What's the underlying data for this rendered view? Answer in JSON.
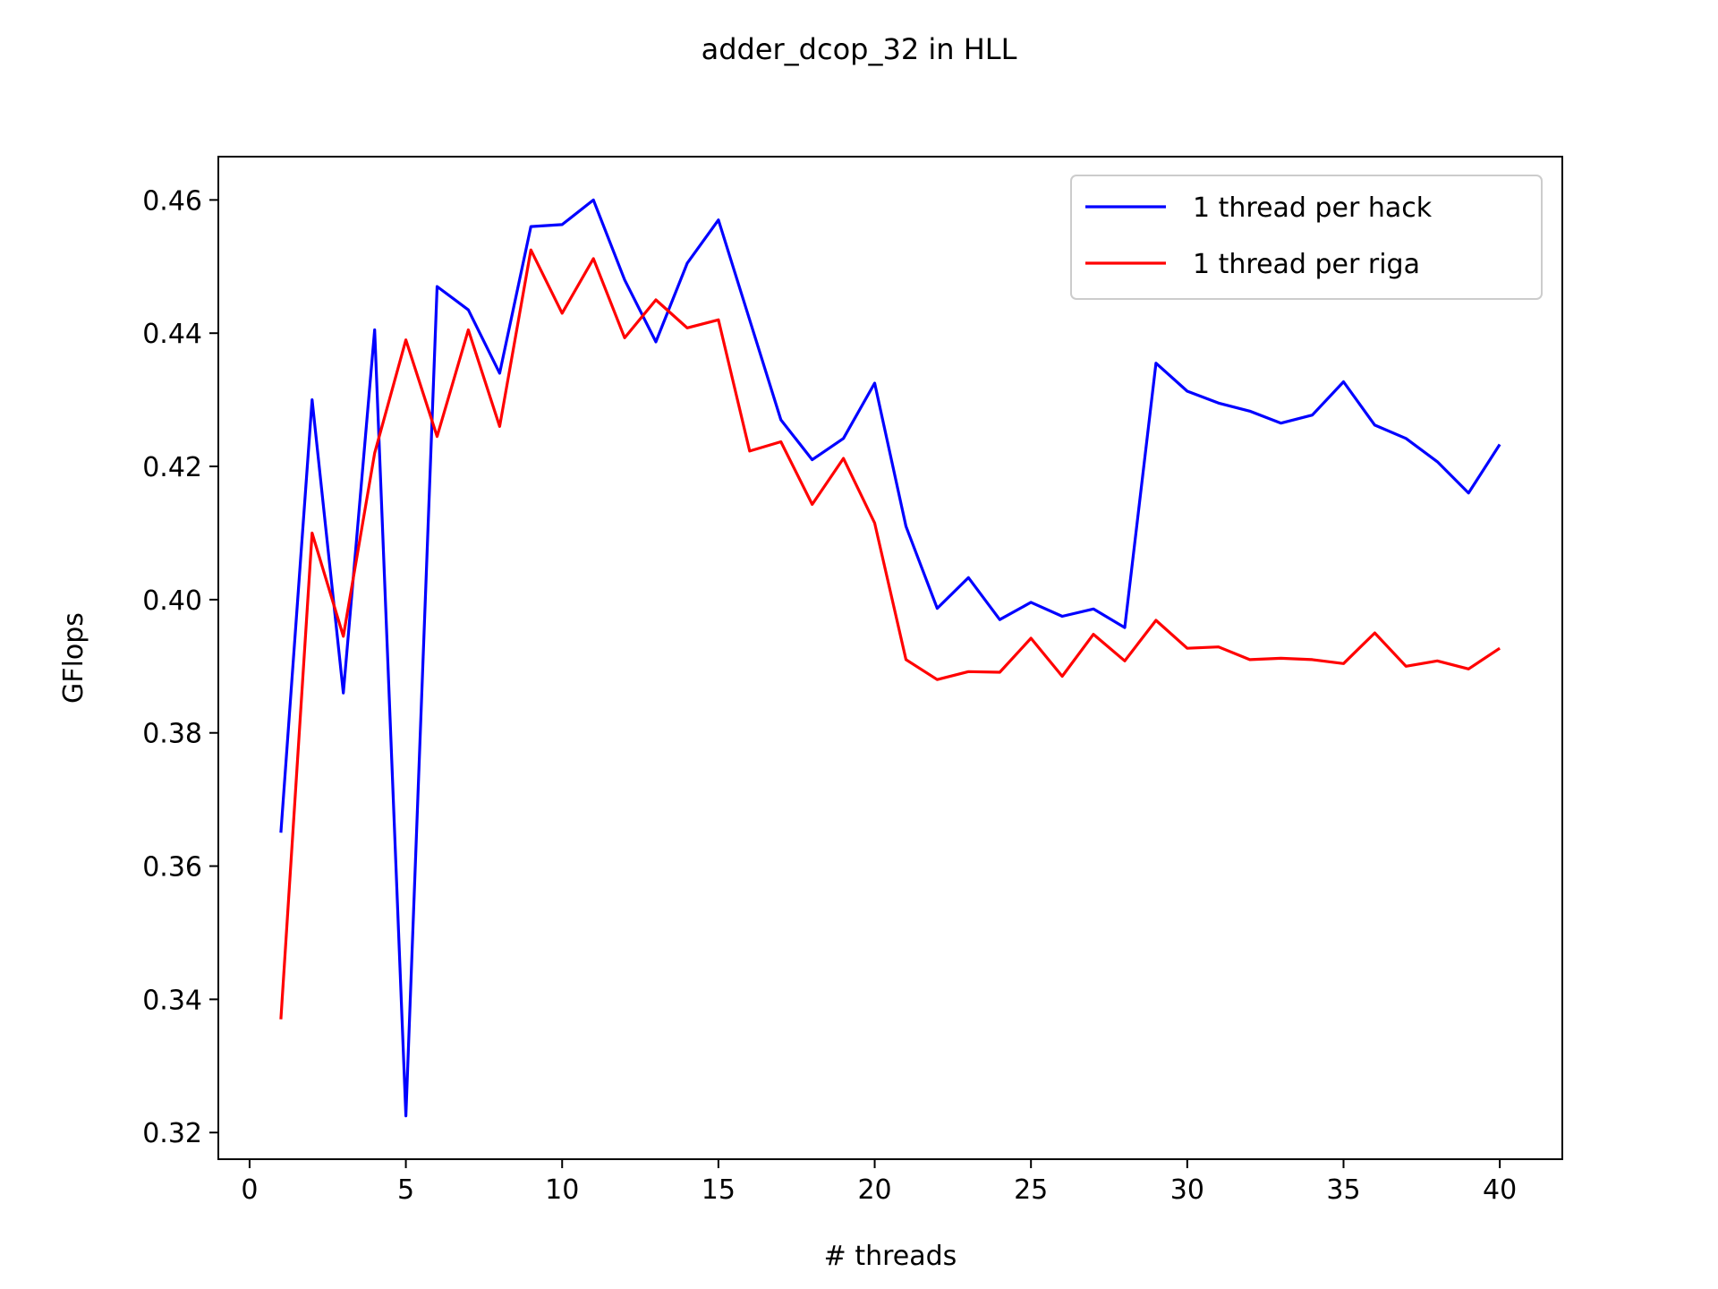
{
  "chart_data": {
    "type": "line",
    "title": "adder_dcop_32 in HLL",
    "xlabel": "# threads",
    "ylabel": "GFlops",
    "xlim": [
      -1,
      42
    ],
    "ylim": [
      0.316,
      0.4665
    ],
    "xticks": [
      0,
      5,
      10,
      15,
      20,
      25,
      30,
      35,
      40
    ],
    "yticks": [
      0.32,
      0.34,
      0.36,
      0.38,
      0.4,
      0.42,
      0.44,
      0.46
    ],
    "xtick_labels": [
      "0",
      "5",
      "10",
      "15",
      "20",
      "25",
      "30",
      "35",
      "40"
    ],
    "ytick_labels": [
      "0.32",
      "0.34",
      "0.36",
      "0.38",
      "0.40",
      "0.42",
      "0.44",
      "0.46"
    ],
    "grid": false,
    "legend_position": "top-right",
    "x": [
      1,
      2,
      3,
      4,
      5,
      6,
      7,
      8,
      9,
      10,
      11,
      12,
      13,
      14,
      15,
      16,
      17,
      18,
      19,
      20,
      21,
      22,
      23,
      24,
      25,
      26,
      27,
      28,
      29,
      30,
      31,
      32,
      33,
      34,
      35,
      36,
      37,
      38,
      39,
      40
    ],
    "series": [
      {
        "name": "1 thread per hack",
        "color": "#0000ff",
        "values": [
          0.365,
          0.43,
          0.386,
          0.4405,
          0.3225,
          0.447,
          0.4435,
          0.434,
          0.456,
          0.4563,
          0.46,
          0.448,
          0.4387,
          0.4505,
          0.457,
          0.442,
          0.427,
          0.421,
          0.4242,
          0.4325,
          0.411,
          0.3987,
          0.4033,
          0.397,
          0.3996,
          0.3975,
          0.3986,
          0.3958,
          0.4355,
          0.4313,
          0.4295,
          0.4283,
          0.4265,
          0.4277,
          0.4327,
          0.4262,
          0.4242,
          0.4207,
          0.416,
          0.4233
        ]
      },
      {
        "name": "1 thread per riga",
        "color": "#ff0000",
        "values": [
          0.337,
          0.41,
          0.3945,
          0.422,
          0.439,
          0.4245,
          0.4405,
          0.426,
          0.4525,
          0.443,
          0.4512,
          0.4393,
          0.445,
          0.4408,
          0.442,
          0.4223,
          0.4237,
          0.4143,
          0.4212,
          0.4115,
          0.391,
          0.388,
          0.3892,
          0.3891,
          0.3942,
          0.3885,
          0.3948,
          0.3908,
          0.3969,
          0.3927,
          0.3929,
          0.391,
          0.3912,
          0.391,
          0.3904,
          0.395,
          0.39,
          0.3908,
          0.3896,
          0.3927
        ]
      }
    ]
  }
}
